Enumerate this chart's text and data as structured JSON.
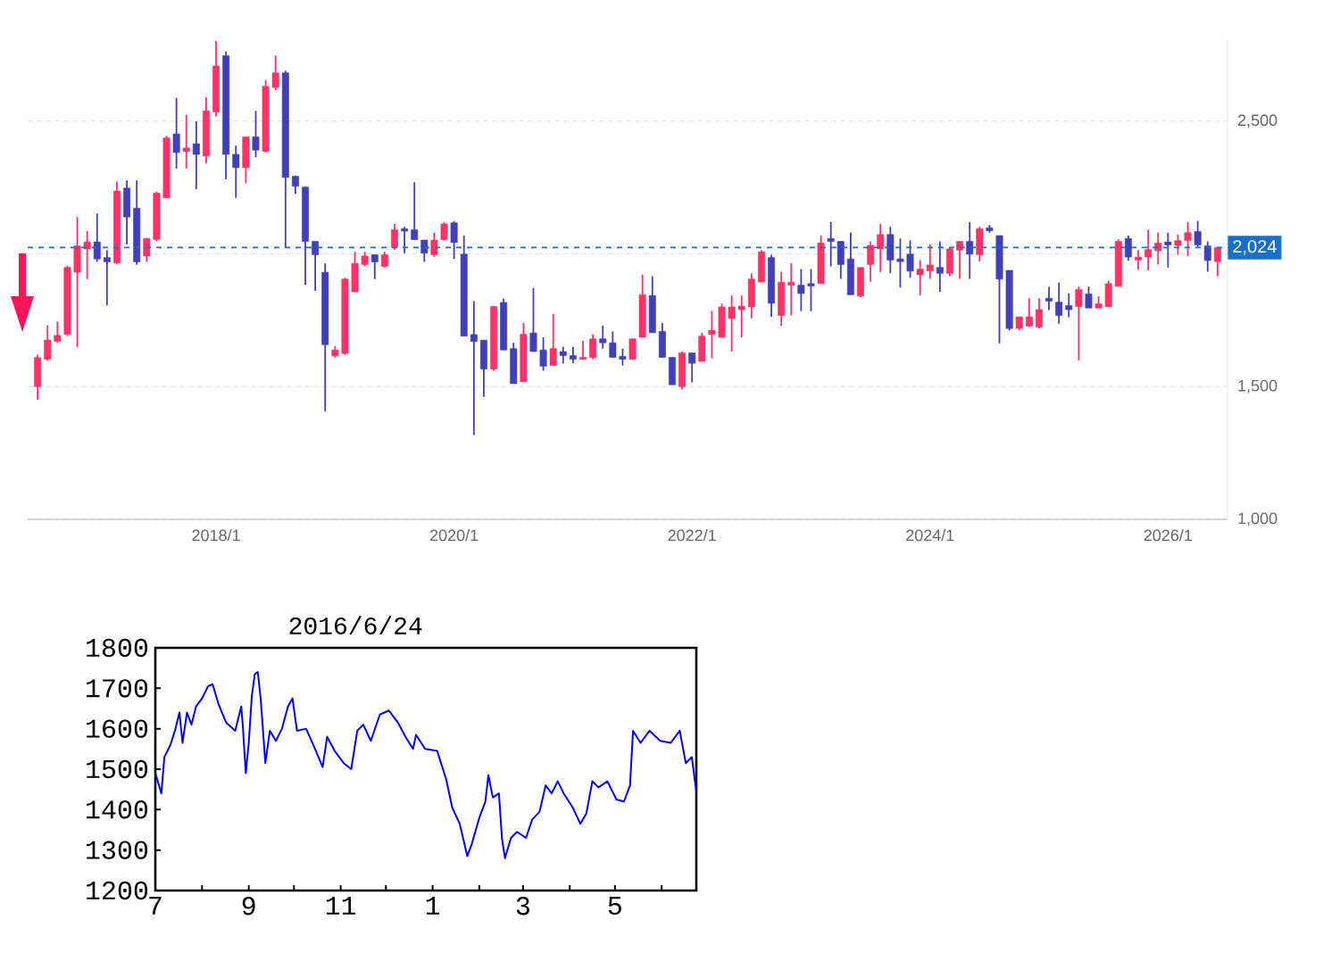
{
  "chart_data": [
    {
      "type": "candlestick",
      "x": [
        "2016-07",
        "2016-08",
        "2016-09",
        "2016-10",
        "2016-11",
        "2016-12",
        "2017-01",
        "2017-02",
        "2017-03",
        "2017-04",
        "2017-05",
        "2017-06",
        "2017-07",
        "2017-08",
        "2017-09",
        "2017-10",
        "2017-11",
        "2017-12",
        "2018-01",
        "2018-02",
        "2018-03",
        "2018-04",
        "2018-05",
        "2018-06",
        "2018-07",
        "2018-08",
        "2018-09",
        "2018-10",
        "2018-11",
        "2018-12",
        "2019-01",
        "2019-02",
        "2019-03",
        "2019-04",
        "2019-05",
        "2019-06",
        "2019-07",
        "2019-08",
        "2019-09",
        "2019-10",
        "2019-11",
        "2019-12",
        "2020-01",
        "2020-02",
        "2020-03",
        "2020-04",
        "2020-05",
        "2020-06",
        "2020-07",
        "2020-08",
        "2020-09",
        "2020-10",
        "2020-11",
        "2020-12",
        "2021-01",
        "2021-02",
        "2021-03",
        "2021-04",
        "2021-05",
        "2021-06",
        "2021-07",
        "2021-08",
        "2021-09",
        "2021-10",
        "2021-11",
        "2021-12",
        "2022-01",
        "2022-02",
        "2022-03",
        "2022-04",
        "2022-05",
        "2022-06",
        "2022-07",
        "2022-08",
        "2022-09",
        "2022-10",
        "2022-11",
        "2022-12",
        "2023-01",
        "2023-02",
        "2023-03",
        "2023-04",
        "2023-05",
        "2023-06",
        "2023-07",
        "2023-08",
        "2023-09",
        "2023-10",
        "2023-11",
        "2023-12",
        "2024-01",
        "2024-02",
        "2024-03",
        "2024-04",
        "2024-05",
        "2024-06",
        "2024-07",
        "2024-08",
        "2024-09",
        "2024-10",
        "2024-11",
        "2024-12",
        "2025-01",
        "2025-02",
        "2025-03",
        "2025-04",
        "2025-05",
        "2025-06",
        "2025-07",
        "2025-08",
        "2025-09",
        "2025-10",
        "2025-11",
        "2025-12",
        "2026-01",
        "2026-02",
        "2026-03",
        "2026-04",
        "2026-05",
        "2026-06"
      ],
      "ohlc": [
        [
          1500,
          1620,
          1450,
          1609
        ],
        [
          1603,
          1730,
          1598,
          1675
        ],
        [
          1671,
          1745,
          1665,
          1693
        ],
        [
          1697,
          1955,
          1690,
          1949
        ],
        [
          1931,
          2139,
          1649,
          2030
        ],
        [
          2019,
          2086,
          1905,
          2045
        ],
        [
          2045,
          2152,
          1970,
          1981
        ],
        [
          1986,
          2014,
          1806,
          1970
        ],
        [
          1966,
          2272,
          1960,
          2237
        ],
        [
          2248,
          2277,
          2036,
          2139
        ],
        [
          2172,
          2277,
          1959,
          1970
        ],
        [
          1992,
          2060,
          1970,
          2058
        ],
        [
          2054,
          2235,
          2047,
          2229
        ],
        [
          2211,
          2445,
          2211,
          2437
        ],
        [
          2452,
          2588,
          2321,
          2382
        ],
        [
          2386,
          2524,
          2321,
          2399
        ],
        [
          2415,
          2500,
          2244,
          2375
        ],
        [
          2369,
          2590,
          2342,
          2539
        ],
        [
          2535,
          2802,
          2517,
          2708
        ],
        [
          2747,
          2763,
          2281,
          2375
        ],
        [
          2375,
          2408,
          2211,
          2325
        ],
        [
          2325,
          2441,
          2266,
          2441
        ],
        [
          2441,
          2539,
          2364,
          2391
        ],
        [
          2386,
          2655,
          2382,
          2631
        ],
        [
          2627,
          2747,
          2616,
          2682
        ],
        [
          2682,
          2690,
          2025,
          2288
        ],
        [
          2292,
          2295,
          2226,
          2255
        ],
        [
          2251,
          2255,
          1883,
          2047
        ],
        [
          2047,
          2047,
          1861,
          1997
        ],
        [
          1931,
          1964,
          1406,
          1658
        ],
        [
          1616,
          1653,
          1609,
          1638
        ],
        [
          1625,
          1910,
          1620,
          1905
        ],
        [
          1857,
          2008,
          1857,
          1964
        ],
        [
          1960,
          2008,
          1953,
          1992
        ],
        [
          1997,
          1997,
          1905,
          1970
        ],
        [
          1953,
          2008,
          1949,
          1997
        ],
        [
          2025,
          2113,
          2014,
          2091
        ],
        [
          2095,
          2102,
          2003,
          2086
        ],
        [
          2091,
          2270,
          2054,
          2054
        ],
        [
          2052,
          2052,
          1970,
          2003
        ],
        [
          1997,
          2080,
          1988,
          2052
        ],
        [
          2054,
          2120,
          2050,
          2113
        ],
        [
          2117,
          2124,
          1981,
          2043
        ],
        [
          1999,
          2069,
          1690,
          1690
        ],
        [
          1696,
          1822,
          1318,
          1670
        ],
        [
          1675,
          1675,
          1461,
          1566
        ],
        [
          1566,
          1802,
          1560,
          1802
        ],
        [
          1817,
          1832,
          1638,
          1638
        ],
        [
          1643,
          1665,
          1511,
          1511
        ],
        [
          1518,
          1740,
          1518,
          1697
        ],
        [
          1702,
          1872,
          1632,
          1632
        ],
        [
          1638,
          1686,
          1560,
          1577
        ],
        [
          1580,
          1774,
          1580,
          1643
        ],
        [
          1632,
          1650,
          1588,
          1617
        ],
        [
          1617,
          1650,
          1588,
          1603
        ],
        [
          1603,
          1672,
          1603,
          1610
        ],
        [
          1610,
          1697,
          1603,
          1680
        ],
        [
          1680,
          1730,
          1643,
          1665
        ],
        [
          1665,
          1708,
          1610,
          1610
        ],
        [
          1614,
          1643,
          1580,
          1603
        ],
        [
          1603,
          1680,
          1603,
          1680
        ],
        [
          1686,
          1922,
          1686,
          1846
        ],
        [
          1843,
          1916,
          1703,
          1703
        ],
        [
          1708,
          1740,
          1610,
          1610
        ],
        [
          1610,
          1610,
          1507,
          1507
        ],
        [
          1500,
          1632,
          1489,
          1627
        ],
        [
          1627,
          1627,
          1516,
          1588
        ],
        [
          1595,
          1703,
          1595,
          1690
        ],
        [
          1697,
          1785,
          1606,
          1712
        ],
        [
          1686,
          1813,
          1686,
          1800
        ],
        [
          1757,
          1843,
          1632,
          1800
        ],
        [
          1790,
          1843,
          1686,
          1803
        ],
        [
          1800,
          1927,
          1757,
          1905
        ],
        [
          1894,
          2014,
          1894,
          2008
        ],
        [
          1986,
          1997,
          1763,
          1814
        ],
        [
          1768,
          1932,
          1729,
          1893
        ],
        [
          1882,
          1965,
          1768,
          1893
        ],
        [
          1882,
          1943,
          1784,
          1851
        ],
        [
          1888,
          1943,
          1784,
          1879
        ],
        [
          1888,
          2069,
          1888,
          2041
        ],
        [
          2058,
          2120,
          1953,
          2047
        ],
        [
          2047,
          2047,
          1906,
          1960
        ],
        [
          1981,
          2080,
          1846,
          1846
        ],
        [
          1841,
          1949,
          1837,
          1949
        ],
        [
          1960,
          2047,
          1895,
          2032
        ],
        [
          2019,
          2113,
          1931,
          2073
        ],
        [
          2073,
          2102,
          1927,
          1977
        ],
        [
          1981,
          2058,
          1873,
          1971
        ],
        [
          1999,
          2051,
          1910,
          1935
        ],
        [
          1921,
          1977,
          1844,
          1943
        ],
        [
          1936,
          2036,
          1906,
          1958
        ],
        [
          1949,
          2047,
          1857,
          1927
        ],
        [
          1927,
          2025,
          1916,
          2019
        ],
        [
          2014,
          2047,
          1906,
          2047
        ],
        [
          2047,
          2120,
          1906,
          1999
        ],
        [
          1997,
          2102,
          1971,
          2095
        ],
        [
          2098,
          2109,
          2080,
          2087
        ],
        [
          2069,
          2069,
          1663,
          1905
        ],
        [
          1938,
          1938,
          1712,
          1719
        ],
        [
          1719,
          1763,
          1712,
          1763
        ],
        [
          1728,
          1833,
          1724,
          1763
        ],
        [
          1724,
          1833,
          1719,
          1790
        ],
        [
          1833,
          1876,
          1788,
          1822
        ],
        [
          1818,
          1892,
          1737,
          1768
        ],
        [
          1805,
          1851,
          1761,
          1790
        ],
        [
          1801,
          1877,
          1599,
          1866
        ],
        [
          1849,
          1877,
          1796,
          1796
        ],
        [
          1796,
          1840,
          1796,
          1812
        ],
        [
          1801,
          1899,
          1801,
          1888
        ],
        [
          1878,
          2055,
          1878,
          2047
        ],
        [
          2058,
          2069,
          1975,
          1988
        ],
        [
          1977,
          2014,
          1940,
          1988
        ],
        [
          1988,
          2091,
          1938,
          2016
        ],
        [
          2012,
          2080,
          1960,
          2041
        ],
        [
          2045,
          2080,
          1949,
          2034
        ],
        [
          2032,
          2073,
          1997,
          2050
        ],
        [
          2050,
          2120,
          1992,
          2080
        ],
        [
          2084,
          2124,
          2027,
          2034
        ],
        [
          2030,
          2047,
          1933,
          1975
        ],
        [
          1971,
          2025,
          1916,
          2024
        ]
      ],
      "colors": [
        "#ff3366",
        "#ff3366",
        "#ff3366",
        "#ff3366",
        "#ff3366",
        "#ff3366",
        "#4040b8",
        "#4040b8",
        "#ff3366",
        "#4040b8",
        "#4040b8",
        "#ff3366",
        "#ff3366",
        "#ff3366",
        "#4040b8",
        "#ff3366",
        "#4040b8",
        "#ff3366",
        "#ff3366",
        "#4040b8",
        "#4040b8",
        "#ff3366",
        "#4040b8",
        "#ff3366",
        "#ff3366",
        "#4040b8",
        "#4040b8",
        "#4040b8",
        "#4040b8",
        "#4040b8",
        "#ff3366",
        "#ff3366",
        "#ff3366",
        "#ff3366",
        "#4040b8",
        "#ff3366",
        "#ff3366",
        "#4040b8",
        "#4040b8",
        "#4040b8",
        "#ff3366",
        "#ff3366",
        "#4040b8",
        "#4040b8",
        "#4040b8",
        "#4040b8",
        "#ff3366",
        "#4040b8",
        "#4040b8",
        "#ff3366",
        "#4040b8",
        "#4040b8",
        "#ff3366",
        "#4040b8",
        "#4040b8",
        "#ff3366",
        "#ff3366",
        "#4040b8",
        "#4040b8",
        "#4040b8",
        "#ff3366",
        "#ff3366",
        "#4040b8",
        "#4040b8",
        "#4040b8",
        "#ff3366",
        "#4040b8",
        "#ff3366",
        "#ff3366",
        "#ff3366",
        "#ff3366",
        "#ff3366",
        "#ff3366",
        "#ff3366",
        "#4040b8",
        "#ff3366",
        "#ff3366",
        "#4040b8",
        "#4040b8",
        "#ff3366",
        "#4040b8",
        "#4040b8",
        "#4040b8",
        "#ff3366",
        "#ff3366",
        "#ff3366",
        "#4040b8",
        "#4040b8",
        "#4040b8",
        "#ff3366",
        "#ff3366",
        "#4040b8",
        "#ff3366",
        "#ff3366",
        "#4040b8",
        "#ff3366",
        "#4040b8",
        "#4040b8",
        "#4040b8",
        "#ff3366",
        "#ff3366",
        "#ff3366",
        "#4040b8",
        "#4040b8",
        "#4040b8",
        "#ff3366",
        "#4040b8",
        "#ff3366",
        "#ff3366",
        "#ff3366",
        "#4040b8",
        "#ff3366",
        "#ff3366",
        "#ff3366",
        "#4040b8",
        "#ff3366",
        "#ff3366",
        "#4040b8",
        "#4040b8",
        "#ff3366"
      ],
      "xlim": [
        "2016-06",
        "2026-07"
      ],
      "xticks": [
        {
          "value": "2018-01",
          "label": "2018/1"
        },
        {
          "value": "2020-01",
          "label": "2020/1"
        },
        {
          "value": "2022-01",
          "label": "2022/1"
        },
        {
          "value": "2024-01",
          "label": "2024/1"
        },
        {
          "value": "2026-01",
          "label": "2026/1"
        }
      ],
      "ylim": [
        1000,
        2802
      ],
      "yticks": [
        {
          "value": 1000,
          "label": "1,000"
        },
        {
          "value": 1500,
          "label": "1,500"
        },
        {
          "value": 2000,
          "label": null
        },
        {
          "value": 2500,
          "label": "2,500"
        }
      ],
      "grid": "y",
      "ref_lines": [
        {
          "axis": "y",
          "value": 2024,
          "label": "2,024",
          "color": "#1a6fc8",
          "line_style": "dashed"
        }
      ]
    },
    {
      "type": "line",
      "title": "2016/6/24",
      "x": [
        "2015-07-01",
        "2015-07-05",
        "2015-07-07",
        "2015-07-11",
        "2015-07-14",
        "2015-07-17",
        "2015-07-19",
        "2015-07-22",
        "2015-07-25",
        "2015-07-28",
        "2015-08-01",
        "2015-08-05",
        "2015-08-08",
        "2015-08-12",
        "2015-08-17",
        "2015-08-23",
        "2015-08-27",
        "2015-08-28",
        "2015-08-30",
        "2015-09-01",
        "2015-09-03",
        "2015-09-05",
        "2015-09-07",
        "2015-09-09",
        "2015-09-12",
        "2015-09-15",
        "2015-09-19",
        "2015-09-23",
        "2015-09-27",
        "2015-09-30",
        "2015-10-03",
        "2015-10-09",
        "2015-10-15",
        "2015-10-20",
        "2015-10-23",
        "2015-10-28",
        "2015-11-03",
        "2015-11-08",
        "2015-11-12",
        "2015-11-16",
        "2015-11-21",
        "2015-11-27",
        "2015-12-03",
        "2015-12-09",
        "2015-12-14",
        "2015-12-19",
        "2015-12-21",
        "2015-12-27",
        "2016-01-04",
        "2016-01-10",
        "2016-01-14",
        "2016-01-19",
        "2016-01-24",
        "2016-01-27",
        "2016-02-01",
        "2016-02-05",
        "2016-02-07",
        "2016-02-10",
        "2016-02-14",
        "2016-02-16",
        "2016-02-18",
        "2016-02-22",
        "2016-02-26",
        "2016-03-03",
        "2016-03-07",
        "2016-03-12",
        "2016-03-16",
        "2016-03-20",
        "2016-03-24",
        "2016-03-28",
        "2016-04-03",
        "2016-04-08",
        "2016-04-12",
        "2016-04-16",
        "2016-04-20",
        "2016-04-26",
        "2016-05-02",
        "2016-05-07",
        "2016-05-11",
        "2016-05-13",
        "2016-05-18",
        "2016-05-24",
        "2016-05-31",
        "2016-06-07",
        "2016-06-13",
        "2016-06-17",
        "2016-06-21",
        "2016-06-24"
      ],
      "series": [
        {
          "color": "#0000ff",
          "values": [
            1490,
            1440,
            1530,
            1560,
            1595,
            1640,
            1565,
            1640,
            1610,
            1655,
            1675,
            1705,
            1710,
            1660,
            1615,
            1595,
            1655,
            1610,
            1490,
            1565,
            1680,
            1735,
            1740,
            1670,
            1515,
            1595,
            1570,
            1600,
            1655,
            1675,
            1595,
            1600,
            1550,
            1505,
            1580,
            1545,
            1515,
            1500,
            1595,
            1610,
            1570,
            1635,
            1645,
            1615,
            1580,
            1550,
            1585,
            1550,
            1545,
            1475,
            1405,
            1365,
            1285,
            1315,
            1380,
            1420,
            1485,
            1430,
            1440,
            1330,
            1280,
            1330,
            1345,
            1330,
            1375,
            1395,
            1460,
            1440,
            1470,
            1440,
            1405,
            1365,
            1390,
            1470,
            1455,
            1470,
            1425,
            1420,
            1460,
            1595,
            1565,
            1595,
            1570,
            1565,
            1595,
            1515,
            1530,
            1445
          ]
        }
      ],
      "xlim": [
        "2015-07-01",
        "2016-06-24"
      ],
      "xticks": [
        {
          "value": "2015-07-01",
          "label": "7"
        },
        {
          "value": "2015-08-01",
          "label": null
        },
        {
          "value": "2015-09-01",
          "label": "9"
        },
        {
          "value": "2015-10-01",
          "label": null
        },
        {
          "value": "2015-11-01",
          "label": "11"
        },
        {
          "value": "2015-12-01",
          "label": null
        },
        {
          "value": "2016-01-01",
          "label": "1"
        },
        {
          "value": "2016-02-01",
          "label": null
        },
        {
          "value": "2016-03-01",
          "label": "3"
        },
        {
          "value": "2016-04-01",
          "label": null
        },
        {
          "value": "2016-05-01",
          "label": "5"
        },
        {
          "value": "2016-06-01",
          "label": null
        }
      ],
      "ylim": [
        1200,
        1800
      ],
      "yticks": [
        1200,
        1300,
        1400,
        1500,
        1600,
        1700,
        1800
      ],
      "marker": "none",
      "line_style": "solid"
    }
  ]
}
